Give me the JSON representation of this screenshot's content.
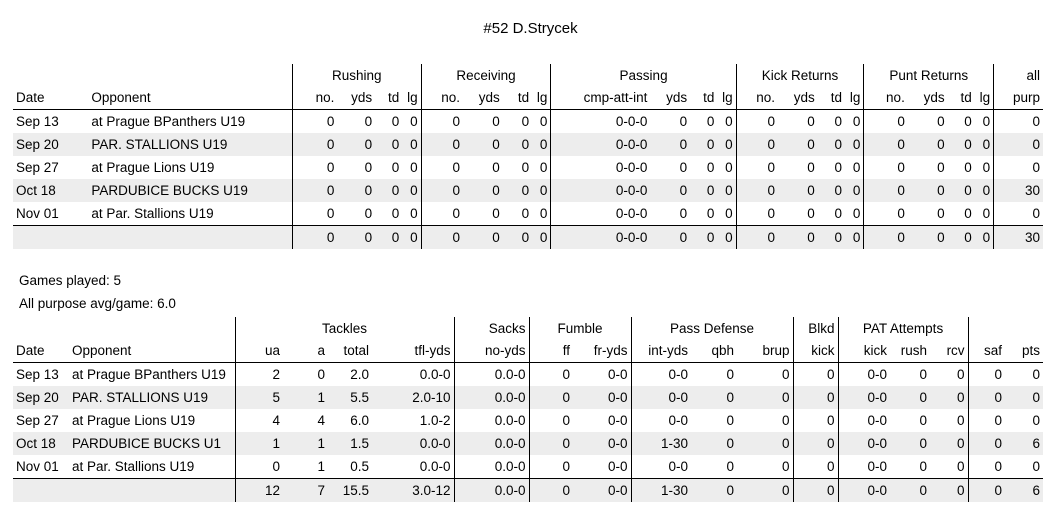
{
  "title": "#52 D.Strycek",
  "offense": {
    "groups": [
      "Rushing",
      "Receiving",
      "Passing",
      "Kick Returns",
      "Punt Returns",
      "all"
    ],
    "headers": [
      "Date",
      "Opponent",
      "no.",
      "yds",
      "td",
      "lg",
      "no.",
      "yds",
      "td",
      "lg",
      "cmp-att-int",
      "yds",
      "td",
      "lg",
      "no.",
      "yds",
      "td",
      "lg",
      "no.",
      "yds",
      "td",
      "lg",
      "purp"
    ],
    "rows": [
      [
        "Sep 13",
        "at Prague BPanthers U19",
        "0",
        "0",
        "0",
        "0",
        "0",
        "0",
        "0",
        "0",
        "0-0-0",
        "0",
        "0",
        "0",
        "0",
        "0",
        "0",
        "0",
        "0",
        "0",
        "0",
        "0",
        "0"
      ],
      [
        "Sep 20",
        "PAR. STALLIONS U19",
        "0",
        "0",
        "0",
        "0",
        "0",
        "0",
        "0",
        "0",
        "0-0-0",
        "0",
        "0",
        "0",
        "0",
        "0",
        "0",
        "0",
        "0",
        "0",
        "0",
        "0",
        "0"
      ],
      [
        "Sep 27",
        "at Prague Lions U19",
        "0",
        "0",
        "0",
        "0",
        "0",
        "0",
        "0",
        "0",
        "0-0-0",
        "0",
        "0",
        "0",
        "0",
        "0",
        "0",
        "0",
        "0",
        "0",
        "0",
        "0",
        "0"
      ],
      [
        "Oct 18",
        "PARDUBICE BUCKS U19",
        "0",
        "0",
        "0",
        "0",
        "0",
        "0",
        "0",
        "0",
        "0-0-0",
        "0",
        "0",
        "0",
        "0",
        "0",
        "0",
        "0",
        "0",
        "0",
        "0",
        "0",
        "30"
      ],
      [
        "Nov 01",
        "at Par. Stallions U19",
        "0",
        "0",
        "0",
        "0",
        "0",
        "0",
        "0",
        "0",
        "0-0-0",
        "0",
        "0",
        "0",
        "0",
        "0",
        "0",
        "0",
        "0",
        "0",
        "0",
        "0",
        "0"
      ]
    ],
    "totals": [
      "",
      "",
      "0",
      "0",
      "0",
      "0",
      "0",
      "0",
      "0",
      "0",
      "0-0-0",
      "0",
      "0",
      "0",
      "0",
      "0",
      "0",
      "0",
      "0",
      "0",
      "0",
      "0",
      "30"
    ]
  },
  "games_played": "Games played: 5",
  "all_purpose_avg": "All purpose avg/game: 6.0",
  "defense": {
    "groups": [
      "Tackles",
      "Sacks",
      "Fumble",
      "Pass Defense",
      "Blkd",
      "PAT Attempts"
    ],
    "headers": [
      "Date",
      "Opponent",
      "ua",
      "a",
      "total",
      "tfl-yds",
      "no-yds",
      "ff",
      "fr-yds",
      "int-yds",
      "qbh",
      "brup",
      "kick",
      "kick",
      "rush",
      "rcv",
      "saf",
      "pts"
    ],
    "rows": [
      [
        "Sep 13",
        "at Prague BPanthers U19",
        "2",
        "0",
        "2.0",
        "0.0-0",
        "0.0-0",
        "0",
        "0-0",
        "0-0",
        "0",
        "0",
        "0",
        "0-0",
        "0",
        "0",
        "0",
        "0"
      ],
      [
        "Sep 20",
        "PAR. STALLIONS U19",
        "5",
        "1",
        "5.5",
        "2.0-10",
        "0.0-0",
        "0",
        "0-0",
        "0-0",
        "0",
        "0",
        "0",
        "0-0",
        "0",
        "0",
        "0",
        "0"
      ],
      [
        "Sep 27",
        "at Prague Lions U19",
        "4",
        "4",
        "6.0",
        "1.0-2",
        "0.0-0",
        "0",
        "0-0",
        "0-0",
        "0",
        "0",
        "0",
        "0-0",
        "0",
        "0",
        "0",
        "0"
      ],
      [
        "Oct 18",
        "PARDUBICE BUCKS U1",
        "1",
        "1",
        "1.5",
        "0.0-0",
        "0.0-0",
        "0",
        "0-0",
        "1-30",
        "0",
        "0",
        "0",
        "0-0",
        "0",
        "0",
        "0",
        "6"
      ],
      [
        "Nov 01",
        "at Par. Stallions U19",
        "0",
        "1",
        "0.5",
        "0.0-0",
        "0.0-0",
        "0",
        "0-0",
        "0-0",
        "0",
        "0",
        "0",
        "0-0",
        "0",
        "0",
        "0",
        "0"
      ]
    ],
    "totals": [
      "",
      "",
      "12",
      "7",
      "15.5",
      "3.0-12",
      "0.0-0",
      "0",
      "0-0",
      "1-30",
      "0",
      "0",
      "0",
      "0-0",
      "0",
      "0",
      "0",
      "6"
    ]
  }
}
